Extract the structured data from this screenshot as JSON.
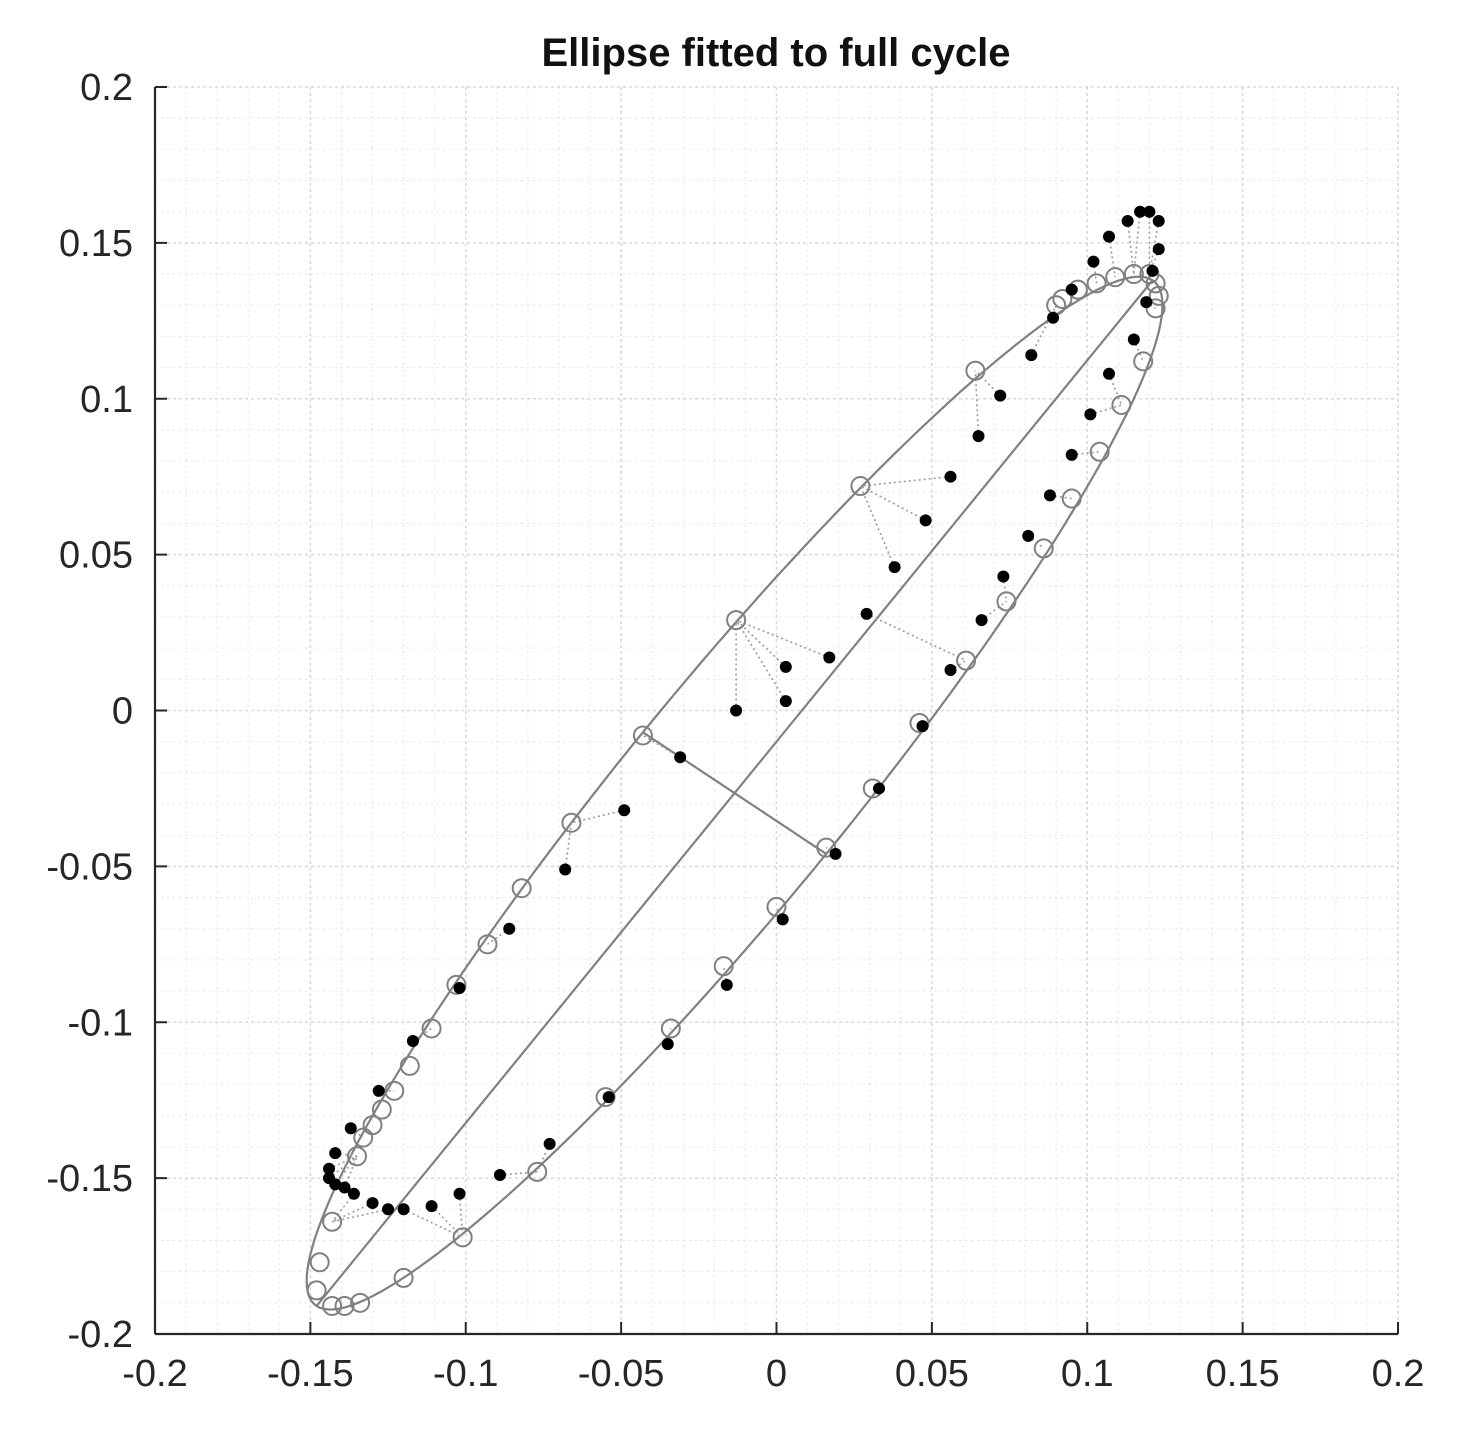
{
  "chart_data": {
    "type": "scatter",
    "title": "Ellipse fitted to full cycle",
    "xlabel": "",
    "ylabel": "",
    "xlim": [
      -0.2,
      0.2
    ],
    "ylim": [
      -0.2,
      0.2
    ],
    "xticks": [
      -0.2,
      -0.15,
      -0.1,
      -0.05,
      0,
      0.05,
      0.1,
      0.15,
      0.2
    ],
    "yticks": [
      -0.2,
      -0.15,
      -0.1,
      -0.05,
      0,
      0.05,
      0.1,
      0.15,
      0.2
    ],
    "xtick_labels": [
      "-0.2",
      "-0.15",
      "-0.1",
      "-0.05",
      "0",
      "0.05",
      "0.1",
      "0.15",
      "0.2"
    ],
    "ytick_labels": [
      "-0.2",
      "-0.15",
      "-0.1",
      "-0.05",
      "0",
      "0.05",
      "0.1",
      "0.15",
      "0.2"
    ],
    "grid": true,
    "minor_grid": true,
    "legend": "none",
    "colors": {
      "measured": "#000000",
      "fitted": "#808080",
      "grid": "#d9d9d9",
      "axes": "#262626"
    },
    "series": [
      {
        "marker": "filled-dot",
        "points": [
          [
            0.12,
            0.16
          ],
          [
            0.117,
            0.16
          ],
          [
            0.123,
            0.157
          ],
          [
            0.113,
            0.157
          ],
          [
            0.107,
            0.152
          ],
          [
            0.123,
            0.148
          ],
          [
            0.102,
            0.144
          ],
          [
            0.121,
            0.141
          ],
          [
            0.095,
            0.135
          ],
          [
            0.119,
            0.131
          ],
          [
            0.089,
            0.126
          ],
          [
            0.115,
            0.119
          ],
          [
            0.082,
            0.114
          ],
          [
            0.107,
            0.108
          ],
          [
            0.072,
            0.101
          ],
          [
            0.101,
            0.095
          ],
          [
            0.065,
            0.088
          ],
          [
            0.095,
            0.082
          ],
          [
            0.056,
            0.075
          ],
          [
            0.088,
            0.069
          ],
          [
            0.048,
            0.061
          ],
          [
            0.081,
            0.056
          ],
          [
            0.038,
            0.046
          ],
          [
            0.073,
            0.043
          ],
          [
            0.029,
            0.031
          ],
          [
            0.066,
            0.029
          ],
          [
            0.017,
            0.017
          ],
          [
            0.056,
            0.013
          ],
          [
            0.003,
            0.014
          ],
          [
            0.003,
            0.003
          ],
          [
            -0.013,
            0.0
          ],
          [
            0.047,
            -0.005
          ],
          [
            -0.031,
            -0.015
          ],
          [
            0.033,
            -0.025
          ],
          [
            -0.049,
            -0.032
          ],
          [
            0.019,
            -0.046
          ],
          [
            -0.068,
            -0.051
          ],
          [
            0.002,
            -0.067
          ],
          [
            -0.086,
            -0.07
          ],
          [
            -0.016,
            -0.088
          ],
          [
            -0.102,
            -0.089
          ],
          [
            -0.035,
            -0.107
          ],
          [
            -0.117,
            -0.106
          ],
          [
            -0.054,
            -0.124
          ],
          [
            -0.128,
            -0.122
          ],
          [
            -0.073,
            -0.139
          ],
          [
            -0.137,
            -0.134
          ],
          [
            -0.089,
            -0.149
          ],
          [
            -0.142,
            -0.142
          ],
          [
            -0.102,
            -0.155
          ],
          [
            -0.144,
            -0.147
          ],
          [
            -0.111,
            -0.159
          ],
          [
            -0.144,
            -0.15
          ],
          [
            -0.12,
            -0.16
          ],
          [
            -0.142,
            -0.152
          ],
          [
            -0.125,
            -0.16
          ],
          [
            -0.139,
            -0.153
          ],
          [
            -0.13,
            -0.158
          ],
          [
            -0.136,
            -0.155
          ]
        ]
      },
      {
        "marker": "open-circle",
        "points": [
          [
            0.12,
            0.14
          ],
          [
            0.115,
            0.14
          ],
          [
            0.122,
            0.137
          ],
          [
            0.109,
            0.139
          ],
          [
            0.103,
            0.137
          ],
          [
            0.123,
            0.133
          ],
          [
            0.097,
            0.135
          ],
          [
            0.092,
            0.132
          ],
          [
            0.122,
            0.129
          ],
          [
            0.09,
            0.13
          ],
          [
            0.064,
            0.109
          ],
          [
            0.118,
            0.112
          ],
          [
            0.111,
            0.098
          ],
          [
            0.027,
            0.072
          ],
          [
            0.104,
            0.083
          ],
          [
            0.095,
            0.068
          ],
          [
            0.086,
            0.052
          ],
          [
            -0.013,
            0.029
          ],
          [
            0.074,
            0.035
          ],
          [
            0.061,
            0.016
          ],
          [
            -0.043,
            -0.008
          ],
          [
            0.046,
            -0.004
          ],
          [
            -0.066,
            -0.036
          ],
          [
            0.031,
            -0.025
          ],
          [
            0.016,
            -0.044
          ],
          [
            -0.082,
            -0.057
          ],
          [
            0.0,
            -0.063
          ],
          [
            -0.093,
            -0.075
          ],
          [
            -0.017,
            -0.082
          ],
          [
            -0.103,
            -0.088
          ],
          [
            -0.034,
            -0.102
          ],
          [
            -0.111,
            -0.102
          ],
          [
            -0.055,
            -0.124
          ],
          [
            -0.118,
            -0.114
          ],
          [
            -0.123,
            -0.122
          ],
          [
            -0.127,
            -0.128
          ],
          [
            -0.13,
            -0.133
          ],
          [
            -0.133,
            -0.137
          ],
          [
            -0.135,
            -0.143
          ],
          [
            -0.077,
            -0.148
          ],
          [
            -0.143,
            -0.164
          ],
          [
            -0.101,
            -0.169
          ],
          [
            -0.12,
            -0.182
          ],
          [
            -0.147,
            -0.177
          ],
          [
            -0.134,
            -0.19
          ],
          [
            -0.148,
            -0.186
          ],
          [
            -0.143,
            -0.191
          ],
          [
            -0.139,
            -0.191
          ]
        ]
      }
    ],
    "fitted_ellipse": {
      "center": [
        -0.0135,
        -0.0265
      ],
      "major_axis_endpoints": [
        [
          0.121,
          0.138
        ],
        [
          -0.148,
          -0.191
        ]
      ],
      "minor_axis_endpoints": [
        [
          -0.043,
          -0.007
        ],
        [
          0.016,
          -0.046
        ]
      ]
    }
  }
}
